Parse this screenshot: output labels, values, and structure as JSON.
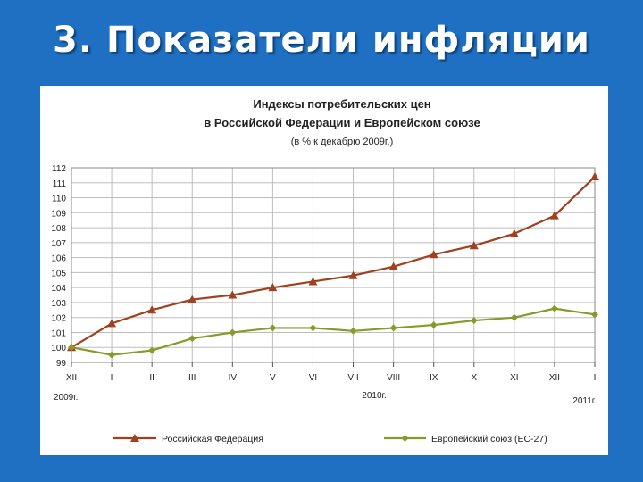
{
  "slide": {
    "title": "3. Показатели инфляции"
  },
  "chart_data": {
    "type": "line",
    "title": "Индексы потребительских цен",
    "title_line2": "в Российской Федерации и Европейском союзе",
    "subtitle": "(в % к декабрю 2009г.)",
    "categories": [
      "XII",
      "I",
      "II",
      "III",
      "IV",
      "V",
      "VI",
      "VII",
      "VIII",
      "IX",
      "X",
      "XI",
      "XII",
      "I"
    ],
    "year_labels": [
      "2009г.",
      "2010г.",
      "2011г."
    ],
    "y_ticks": [
      99,
      100,
      101,
      102,
      103,
      104,
      105,
      106,
      107,
      108,
      109,
      110,
      111,
      112
    ],
    "ylim": [
      99,
      112
    ],
    "grid": true,
    "legend_position": "bottom",
    "series": [
      {
        "name": "Российская Федерация",
        "color": "#a0401e",
        "marker": "triangle",
        "values": [
          100.0,
          101.6,
          102.5,
          103.2,
          103.5,
          104.0,
          104.4,
          104.8,
          105.4,
          106.2,
          106.8,
          107.6,
          108.8,
          111.4
        ]
      },
      {
        "name": "Европейский союз (ЕС-27)",
        "color": "#8a9a2a",
        "marker": "diamond",
        "values": [
          100.0,
          99.5,
          99.8,
          100.6,
          101.0,
          101.3,
          101.3,
          101.1,
          101.3,
          101.5,
          101.8,
          102.0,
          102.6,
          102.2
        ]
      }
    ]
  }
}
